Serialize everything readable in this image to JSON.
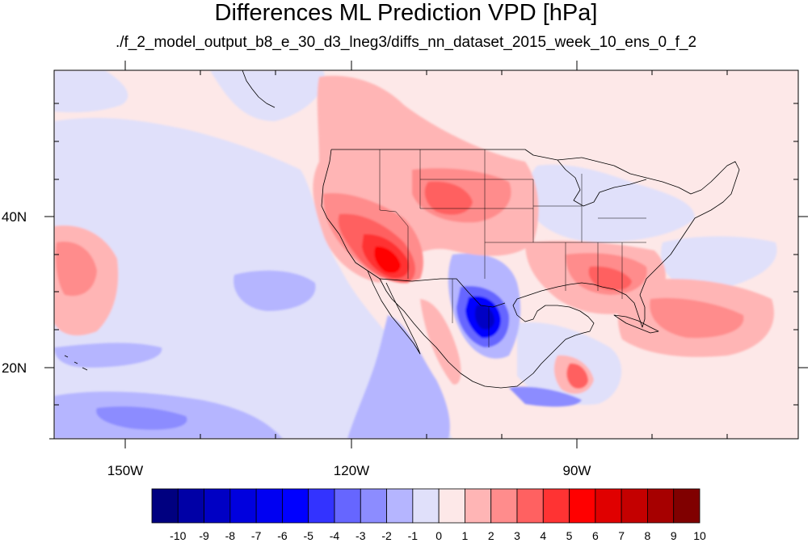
{
  "title": "Differences ML Prediction VPD [hPa]",
  "subtitle": "./f_2_model_output_b8_e_30_d3_lneg3/diffs_nn_dataset_2015_week_10_ens_0_f_2",
  "map": {
    "lon_labels": [
      "150W",
      "120W",
      "90W"
    ],
    "lat_labels": [
      "40N",
      "20N"
    ],
    "background_color": "#fde8e8"
  },
  "colorbar": {
    "labels": [
      "-10",
      "-9",
      "-8",
      "-7",
      "-6",
      "-5",
      "-4",
      "-3",
      "-2",
      "-1",
      "0",
      "1",
      "2",
      "3",
      "4",
      "5",
      "6",
      "7",
      "8",
      "9",
      "10"
    ],
    "colors": [
      "#000080",
      "#0000a6",
      "#0000c4",
      "#0000de",
      "#0000f2",
      "#0000ff",
      "#3333ff",
      "#6666ff",
      "#8c8cff",
      "#b5b5ff",
      "#e0e0fa",
      "#fde8e8",
      "#ffb5b5",
      "#ff8c8c",
      "#ff6161",
      "#ff3333",
      "#ff0000",
      "#e00000",
      "#c40000",
      "#a60000",
      "#800000"
    ]
  }
}
